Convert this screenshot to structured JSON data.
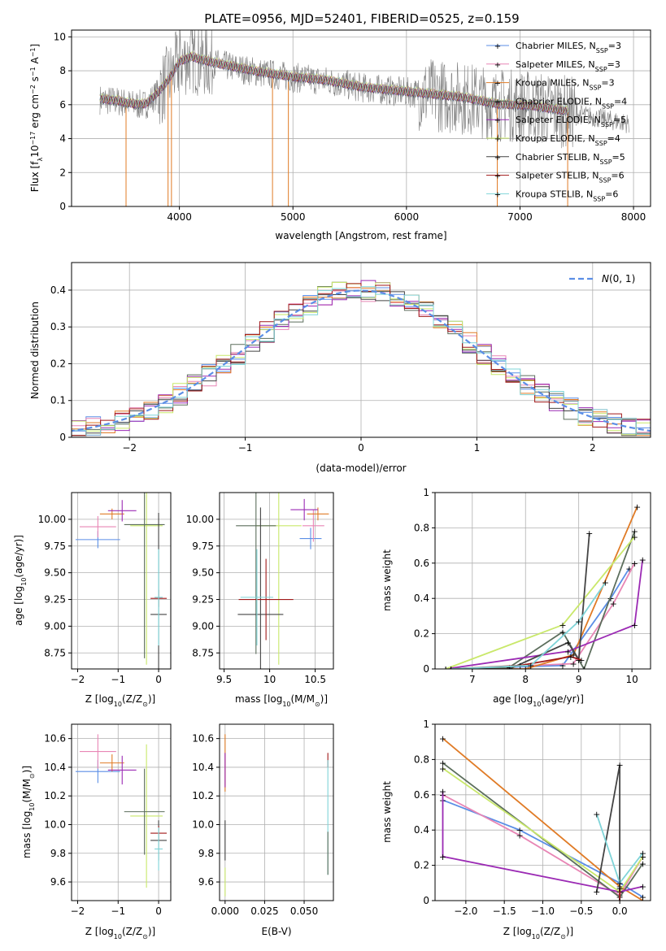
{
  "title": "PLATE=0956, MJD=52401, FIBERID=0525, z=0.159",
  "models": [
    {
      "name": "Chabrier MILES",
      "nssp": "3",
      "color": "#5b8ee6"
    },
    {
      "name": "Salpeter MILES",
      "nssp": "3",
      "color": "#e886b5"
    },
    {
      "name": "Kroupa MILES",
      "nssp": "3",
      "color": "#e07b26"
    },
    {
      "name": "Chabrier ELODIE",
      "nssp": "4",
      "color": "#5c6e5c"
    },
    {
      "name": "Salpeter ELODIE",
      "nssp": "5",
      "color": "#9b2ab4"
    },
    {
      "name": "Kroupa ELODIE",
      "nssp": "4",
      "color": "#c9e86a"
    },
    {
      "name": "Chabrier STELIB",
      "nssp": "5",
      "color": "#444444"
    },
    {
      "name": "Salpeter STELIB",
      "nssp": "6",
      "color": "#a01818"
    },
    {
      "name": "Kroupa STELIB",
      "nssp": "6",
      "color": "#7fd4d8"
    }
  ],
  "chart_data": [
    {
      "id": "spectrum",
      "type": "line",
      "xlabel": "wavelength [Angstrom, rest frame]",
      "ylabel_parts": [
        "Flux [f",
        "λ",
        "10",
        "−17",
        " erg cm",
        "−2",
        " s",
        "−1",
        " A",
        "−1",
        "]"
      ],
      "xlim": [
        3050,
        8150
      ],
      "ylim": [
        0,
        10.4
      ],
      "xticks": [
        4000,
        5000,
        6000,
        7000,
        8000
      ],
      "yticks": [
        0,
        2,
        4,
        6,
        8,
        10
      ],
      "data_color": "#808080",
      "continuum": [
        [
          3300,
          6.3
        ],
        [
          3450,
          6.2
        ],
        [
          3600,
          6.0
        ],
        [
          3700,
          6.0
        ],
        [
          3800,
          6.6
        ],
        [
          3900,
          7.4
        ],
        [
          4000,
          8.5
        ],
        [
          4100,
          8.8
        ],
        [
          4200,
          8.6
        ],
        [
          4400,
          8.3
        ],
        [
          4700,
          7.9
        ],
        [
          5000,
          7.6
        ],
        [
          5300,
          7.4
        ],
        [
          5600,
          7.0
        ],
        [
          5900,
          6.8
        ],
        [
          6200,
          6.6
        ],
        [
          6500,
          6.4
        ],
        [
          6800,
          6.0
        ],
        [
          7100,
          5.9
        ],
        [
          7400,
          5.6
        ],
        [
          7700,
          5.2
        ],
        [
          7950,
          4.9
        ]
      ]
    },
    {
      "id": "residuals",
      "type": "histogram",
      "xlabel": "(data-model)/error",
      "ylabel": "Normed distribution",
      "xlim": [
        -2.5,
        2.5
      ],
      "ylim": [
        0,
        0.475
      ],
      "xticks": [
        -2,
        -1,
        0,
        1,
        2
      ],
      "yticks": [
        0.0,
        0.1,
        0.2,
        0.3,
        0.4
      ],
      "bin_width": 0.125,
      "reference": {
        "label": "N(0,1)",
        "mean": 0,
        "sigma": 1,
        "color": "#5b8ee6"
      }
    },
    {
      "id": "age-vs-Z",
      "type": "scatter",
      "xlabel_parts": [
        "Z [log",
        "10",
        "(Z/Z",
        "⊙",
        ")]"
      ],
      "ylabel_parts": [
        "age  [log",
        "10",
        "(age/yr)]"
      ],
      "xlim": [
        -2.15,
        0.3
      ],
      "ylim": [
        8.6,
        10.25
      ],
      "xticks": [
        -2,
        -1,
        0
      ],
      "yticks": [
        8.75,
        9.0,
        9.25,
        9.5,
        9.75,
        10.0
      ],
      "ytick_labels": [
        "8.75",
        "9.00",
        "9.25",
        "9.50",
        "9.75",
        "10.00"
      ],
      "points": [
        {
          "m": 0,
          "x": -1.5,
          "y": 9.81,
          "xe": 0.55,
          "ye": 0.08
        },
        {
          "m": 1,
          "x": -1.5,
          "y": 9.93,
          "xe": 0.45,
          "ye": 0.1
        },
        {
          "m": 2,
          "x": -1.15,
          "y": 10.05,
          "xe": 0.3,
          "ye": 0.05
        },
        {
          "m": 4,
          "x": -0.9,
          "y": 10.08,
          "xe": 0.35,
          "ye": 0.1
        },
        {
          "m": 5,
          "x": -0.3,
          "y": 9.94,
          "xe": 0.4,
          "ye": 1.3
        },
        {
          "m": 3,
          "x": -0.35,
          "y": 9.95,
          "xe": 0.5,
          "ye": 1.25
        },
        {
          "m": 6,
          "x": 0.0,
          "y": 9.11,
          "xe": 0.2,
          "ye": 0.95
        },
        {
          "m": 7,
          "x": 0.0,
          "y": 9.26,
          "xe": 0.2,
          "ye": 0.08
        },
        {
          "m": 8,
          "x": 0.0,
          "y": 9.27,
          "xe": 0.1,
          "ye": 0.45
        }
      ]
    },
    {
      "id": "age-vs-mass",
      "type": "scatter",
      "xlabel_parts": [
        "mass [log",
        "10",
        "(M/M",
        "⊙",
        ")]"
      ],
      "ylabel_parts": [],
      "xlim": [
        9.45,
        10.7
      ],
      "ylim": [
        8.6,
        10.25
      ],
      "xticks": [
        9.5,
        10.0,
        10.5
      ],
      "yticks": [
        8.75,
        9.0,
        9.25,
        9.5,
        9.75,
        10.0
      ],
      "ytick_labels": [
        "8.75",
        "9.00",
        "9.25",
        "9.50",
        "9.75",
        "10.00"
      ],
      "points": [
        {
          "m": 0,
          "x": 10.45,
          "y": 9.82,
          "xe": 0.12,
          "ye": 0.1
        },
        {
          "m": 1,
          "x": 10.48,
          "y": 9.94,
          "xe": 0.12,
          "ye": 0.15
        },
        {
          "m": 2,
          "x": 10.53,
          "y": 10.05,
          "xe": 0.12,
          "ye": 0.06
        },
        {
          "m": 4,
          "x": 10.38,
          "y": 10.09,
          "xe": 0.15,
          "ye": 0.1
        },
        {
          "m": 5,
          "x": 10.1,
          "y": 9.94,
          "xe": 0.25,
          "ye": 1.3
        },
        {
          "m": 3,
          "x": 9.85,
          "y": 9.94,
          "xe": 0.22,
          "ye": 1.2
        },
        {
          "m": 6,
          "x": 9.9,
          "y": 9.11,
          "xe": 0.25,
          "ye": 1.0
        },
        {
          "m": 7,
          "x": 9.96,
          "y": 9.25,
          "xe": 0.3,
          "ye": 0.38
        },
        {
          "m": 8,
          "x": 9.86,
          "y": 9.27,
          "xe": 0.18,
          "ye": 0.45
        }
      ]
    },
    {
      "id": "mass-weight-vs-age",
      "type": "line",
      "xlabel_parts": [
        "age  [log",
        "10",
        "(age/yr)]"
      ],
      "ylabel": "mass weight",
      "xlim": [
        6.3,
        10.35
      ],
      "ylim": [
        0,
        1.0
      ],
      "xticks": [
        7,
        8,
        9,
        10
      ],
      "yticks": [
        0.0,
        0.2,
        0.4,
        0.6,
        0.8,
        1.0
      ],
      "series": [
        {
          "m": 0,
          "x": [
            6.6,
            8.7,
            9.6,
            9.95
          ],
          "y": [
            0.0,
            0.02,
            0.4,
            0.57
          ]
        },
        {
          "m": 1,
          "x": [
            6.6,
            8.9,
            9.65,
            10.05
          ],
          "y": [
            0.0,
            0.03,
            0.37,
            0.6
          ]
        },
        {
          "m": 2,
          "x": [
            6.5,
            8.0,
            8.9,
            10.1
          ],
          "y": [
            0.0,
            0.0,
            0.08,
            0.92
          ]
        },
        {
          "m": 3,
          "x": [
            6.6,
            7.7,
            8.7,
            9.1,
            10.05
          ],
          "y": [
            0.0,
            0.01,
            0.21,
            0.0,
            0.78
          ]
        },
        {
          "m": 4,
          "x": [
            6.5,
            8.8,
            10.05,
            10.2
          ],
          "y": [
            0.0,
            0.1,
            0.25,
            0.62
          ]
        },
        {
          "m": 5,
          "x": [
            6.5,
            8.7,
            10.05
          ],
          "y": [
            0.0,
            0.25,
            0.75
          ]
        },
        {
          "m": 6,
          "x": [
            6.6,
            7.7,
            8.8,
            9.0,
            9.2
          ],
          "y": [
            0.0,
            0.0,
            0.15,
            0.05,
            0.77
          ]
        },
        {
          "m": 7,
          "x": [
            6.6,
            7.9,
            8.85,
            9.05
          ],
          "y": [
            0.0,
            0.02,
            0.07,
            0.05
          ]
        },
        {
          "m": 8,
          "x": [
            6.6,
            8.1,
            9.0,
            9.5
          ],
          "y": [
            0.0,
            0.02,
            0.27,
            0.49
          ]
        }
      ]
    },
    {
      "id": "mass-vs-Z",
      "type": "scatter",
      "xlabel_parts": [
        "Z [log",
        "10",
        "(Z/Z",
        "⊙",
        ")]"
      ],
      "ylabel_parts": [
        "mass [log",
        "10",
        "(M/M",
        "⊙",
        ")]"
      ],
      "xlim": [
        -2.15,
        0.3
      ],
      "ylim": [
        9.47,
        10.7
      ],
      "xticks": [
        -2,
        -1,
        0
      ],
      "yticks": [
        9.6,
        9.8,
        10.0,
        10.2,
        10.4,
        10.6
      ],
      "ytick_labels": [
        "9.6",
        "9.8",
        "10.0",
        "10.2",
        "10.4",
        "10.6"
      ],
      "points": [
        {
          "m": 0,
          "x": -1.5,
          "y": 10.37,
          "xe": 0.55,
          "ye": 0.08
        },
        {
          "m": 1,
          "x": -1.5,
          "y": 10.51,
          "xe": 0.45,
          "ye": 0.12
        },
        {
          "m": 2,
          "x": -1.15,
          "y": 10.43,
          "xe": 0.3,
          "ye": 0.06
        },
        {
          "m": 4,
          "x": -0.9,
          "y": 10.38,
          "xe": 0.35,
          "ye": 0.1
        },
        {
          "m": 5,
          "x": -0.3,
          "y": 10.06,
          "xe": 0.4,
          "ye": 0.5
        },
        {
          "m": 3,
          "x": -0.35,
          "y": 10.09,
          "xe": 0.5,
          "ye": 0.3
        },
        {
          "m": 6,
          "x": 0.0,
          "y": 9.89,
          "xe": 0.2,
          "ye": 0.14
        },
        {
          "m": 7,
          "x": 0.0,
          "y": 9.94,
          "xe": 0.2,
          "ye": 0.05
        },
        {
          "m": 8,
          "x": 0.0,
          "y": 9.83,
          "xe": 0.1,
          "ye": 0.15
        }
      ]
    },
    {
      "id": "mass-vs-ebv",
      "type": "scatter",
      "xlabel": "E(B-V)",
      "ylabel_parts": [],
      "xlim": [
        -0.0035,
        0.0685
      ],
      "ylim": [
        9.47,
        10.7
      ],
      "xticks": [
        0.0,
        0.025,
        0.05
      ],
      "xtick_labels": [
        "0.000",
        "0.025",
        "0.050"
      ],
      "yticks": [
        9.6,
        9.8,
        10.0,
        10.2,
        10.4,
        10.6
      ],
      "ytick_labels": [
        "9.6",
        "9.8",
        "10.0",
        "10.2",
        "10.4",
        "10.6"
      ],
      "points": [
        {
          "m": 2,
          "x": 0.0,
          "y": 10.43,
          "xe": 0,
          "ye": 0.2
        },
        {
          "m": 4,
          "x": 0.0,
          "y": 10.38,
          "xe": 0,
          "ye": 0.12
        },
        {
          "m": 6,
          "x": 0.0,
          "y": 9.89,
          "xe": 0,
          "ye": 0.14
        },
        {
          "m": 5,
          "x": 0.0,
          "y": 9.6,
          "xe": 0,
          "ye": 0.1
        },
        {
          "m": 7,
          "x": 0.065,
          "y": 10.45,
          "xe": 0,
          "ye": 0.05
        },
        {
          "m": 8,
          "x": 0.065,
          "y": 10.05,
          "xe": 0,
          "ye": 0.4
        },
        {
          "m": 3,
          "x": 0.065,
          "y": 9.8,
          "xe": 0,
          "ye": 0.15
        }
      ]
    },
    {
      "id": "mass-weight-vs-Z",
      "type": "line",
      "xlabel_parts": [
        "Z [log",
        "10",
        "(Z/Z",
        "⊙",
        ")]"
      ],
      "ylabel": "mass weight",
      "xlim": [
        -2.4,
        0.4
      ],
      "ylim": [
        0,
        1.0
      ],
      "xticks": [
        -2.0,
        -1.5,
        -1.0,
        -0.5,
        0.0
      ],
      "xtick_labels": [
        "−2.0",
        "−1.5",
        "−1.0",
        "−0.5",
        "0.0"
      ],
      "yticks": [
        0.0,
        0.2,
        0.4,
        0.6,
        0.8,
        1.0
      ],
      "series": [
        {
          "m": 0,
          "x": [
            -2.3,
            -1.3,
            0.0,
            0.3
          ],
          "y": [
            0.57,
            0.4,
            0.1,
            0.02
          ]
        },
        {
          "m": 1,
          "x": [
            -2.3,
            -1.3,
            0.0,
            0.3
          ],
          "y": [
            0.6,
            0.37,
            0.03,
            0.25
          ]
        },
        {
          "m": 2,
          "x": [
            -2.3,
            0.0,
            0.3
          ],
          "y": [
            0.92,
            0.08,
            0.0
          ]
        },
        {
          "m": 3,
          "x": [
            -2.3,
            0.0,
            0.3
          ],
          "y": [
            0.78,
            0.02,
            0.21
          ]
        },
        {
          "m": 4,
          "x": [
            -2.3,
            -2.3,
            0.0,
            0.3
          ],
          "y": [
            0.62,
            0.25,
            0.05,
            0.08
          ]
        },
        {
          "m": 5,
          "x": [
            -2.3,
            0.0,
            0.3
          ],
          "y": [
            0.75,
            0.05,
            0.25
          ]
        },
        {
          "m": 6,
          "x": [
            -0.3,
            0.0,
            0.0
          ],
          "y": [
            0.05,
            0.77,
            0.0
          ]
        },
        {
          "m": 7,
          "x": [
            0.0,
            0.0
          ],
          "y": [
            0.07,
            0.0
          ]
        },
        {
          "m": 8,
          "x": [
            -0.3,
            0.0,
            0.3
          ],
          "y": [
            0.49,
            0.1,
            0.27
          ]
        }
      ]
    }
  ]
}
